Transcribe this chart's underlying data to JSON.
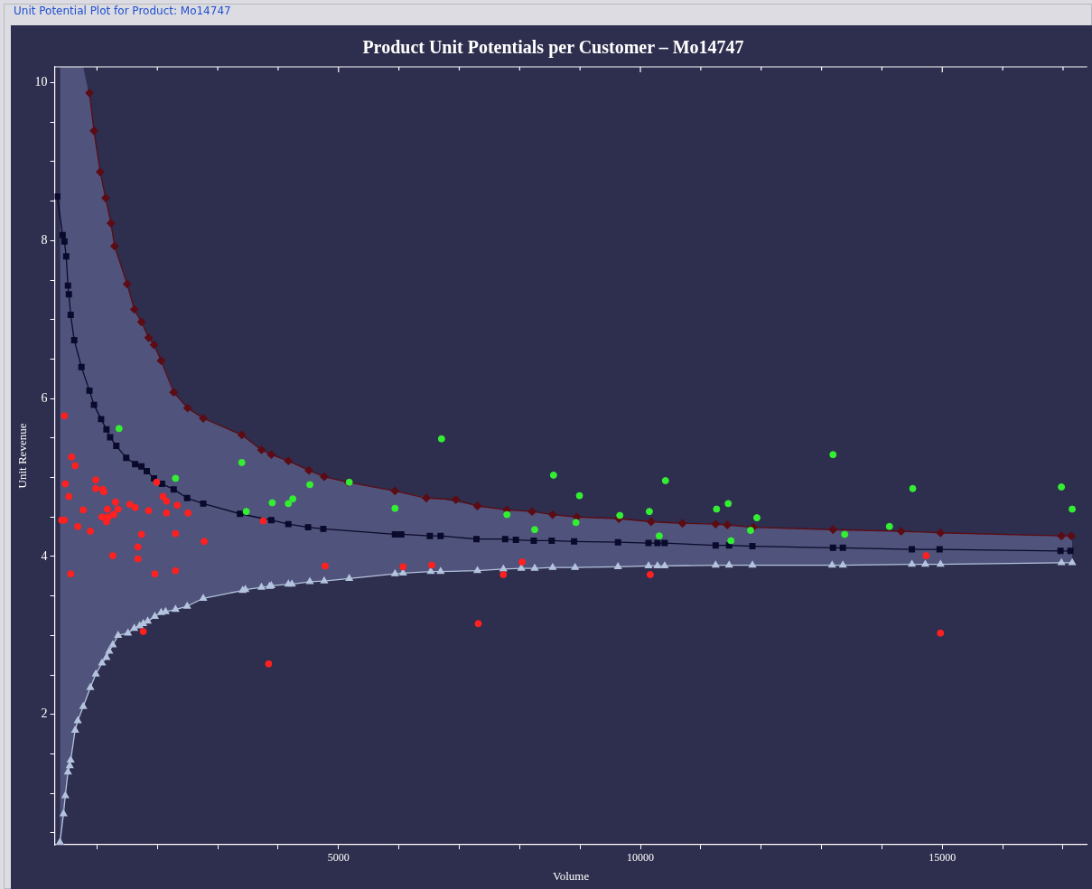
{
  "chart_data": {
    "type": "scatter",
    "title": "Product Unit Potentials per Customer – Mo14747",
    "annotations": [
      "Unit Potential Plot for Product: Mo14747"
    ],
    "xlabel": "Volume",
    "ylabel": "Unit Revenue",
    "xlim": [
      300,
      17400
    ],
    "ylim": [
      0.35,
      10.2
    ],
    "xticks": [
      {
        "value": 1000,
        "label": null
      },
      {
        "value": 2000,
        "label": null
      },
      {
        "value": 3000,
        "label": null
      },
      {
        "value": 4000,
        "label": null
      },
      5000,
      {
        "value": 6000,
        "label": null
      },
      {
        "value": 7000,
        "label": null
      },
      {
        "value": 8000,
        "label": null
      },
      {
        "value": 9000,
        "label": null
      },
      10000,
      {
        "value": 11000,
        "label": null
      },
      {
        "value": 12000,
        "label": null
      },
      {
        "value": 13000,
        "label": null
      },
      {
        "value": 14000,
        "label": null
      },
      15000,
      {
        "value": 16000,
        "label": null
      },
      {
        "value": 17000,
        "label": null
      }
    ],
    "yticks": [
      {
        "value": 0.5,
        "label": null
      },
      {
        "value": 1,
        "label": null
      },
      {
        "value": 1.5,
        "label": null
      },
      2,
      {
        "value": 2.5,
        "label": null
      },
      {
        "value": 3,
        "label": null
      },
      {
        "value": 3.5,
        "label": null
      },
      4,
      {
        "value": 4.5,
        "label": null
      },
      {
        "value": 5,
        "label": null
      },
      {
        "value": 5.5,
        "label": null
      },
      6,
      {
        "value": 6.5,
        "label": null
      },
      {
        "value": 7,
        "label": null
      },
      {
        "value": 7.5,
        "label": null
      },
      8,
      {
        "value": 8.5,
        "label": null
      },
      {
        "value": 9,
        "label": null
      },
      {
        "value": 9.5,
        "label": null
      },
      10
    ],
    "grid": false,
    "legend": false,
    "series": [
      {
        "type": "line",
        "color": "#5c0c14",
        "marker": "diamond",
        "x": [
          875,
          950,
          1053,
          1142,
          1231,
          1291,
          1499,
          1617,
          1736,
          1855,
          1944,
          2062,
          2270,
          2500,
          2760,
          3398,
          3724,
          3887,
          4169,
          4510,
          4763,
          5163,
          5935,
          6454,
          6944,
          7300,
          7789,
          8205,
          8546,
          8947,
          9644,
          10178,
          10697,
          11246,
          11439,
          11869,
          13190,
          14318,
          14970,
          16973,
          17136
        ],
        "values": [
          9.87,
          9.39,
          8.87,
          8.54,
          8.22,
          7.93,
          7.45,
          7.13,
          6.97,
          6.77,
          6.68,
          6.48,
          6.08,
          5.88,
          5.75,
          5.54,
          5.35,
          5.29,
          5.21,
          5.09,
          5.01,
          4.94,
          4.83,
          4.74,
          4.72,
          4.64,
          4.59,
          4.57,
          4.53,
          4.5,
          4.48,
          4.44,
          4.42,
          4.41,
          4.4,
          4.37,
          4.34,
          4.32,
          4.3,
          4.26,
          4.26
        ]
      },
      {
        "type": "line",
        "color": "#0a0a2c",
        "marker": "square",
        "x": [
          341,
          430,
          460,
          490,
          519,
          534,
          564,
          623,
          742,
          875,
          950,
          1068,
          1157,
          1217,
          1320,
          1484,
          1632,
          1736,
          1825,
          1944,
          2077,
          2270,
          2493,
          2760,
          3368,
          3887,
          4169,
          4496,
          4748,
          5935,
          6039,
          6513,
          6691,
          7285,
          7760,
          7938,
          8234,
          8531,
          8902,
          9629,
          10134,
          10282,
          10401,
          11246,
          11469,
          11855,
          13190,
          13353,
          14496,
          14955,
          16958,
          17122
        ],
        "values": [
          8.56,
          8.07,
          7.99,
          7.8,
          7.43,
          7.32,
          7.06,
          6.74,
          6.4,
          6.1,
          5.92,
          5.74,
          5.61,
          5.51,
          5.4,
          5.25,
          5.17,
          5.14,
          5.08,
          4.99,
          4.92,
          4.85,
          4.74,
          4.67,
          4.54,
          4.46,
          4.41,
          4.37,
          4.35,
          4.28,
          4.28,
          4.26,
          4.26,
          4.22,
          4.22,
          4.21,
          4.2,
          4.2,
          4.19,
          4.18,
          4.17,
          4.17,
          4.17,
          4.14,
          4.14,
          4.13,
          4.11,
          4.11,
          4.09,
          4.09,
          4.07,
          4.07
        ]
      },
      {
        "type": "line",
        "color": "#b4c4de",
        "marker": "triangle",
        "x": [
          386,
          445,
          475,
          519,
          549,
          564,
          638,
          682,
          772,
          890,
          980,
          1083,
          1157,
          1202,
          1261,
          1350,
          1513,
          1617,
          1706,
          1766,
          1840,
          1958,
          2062,
          2136,
          2300,
          2493,
          2760,
          3412,
          3457,
          3724,
          3858,
          3887,
          4169,
          4228,
          4525,
          4763,
          5178,
          5935,
          6068,
          6528,
          6691,
          7300,
          7730,
          8027,
          8249,
          8546,
          8917,
          9629,
          10134,
          10282,
          10401,
          11246,
          11469,
          11855,
          13175,
          13353,
          14496,
          14718,
          14970,
          16973,
          17151
        ],
        "lower": [
          0.38,
          0.74,
          0.97,
          1.27,
          1.35,
          1.42,
          1.8,
          1.92,
          2.1,
          2.34,
          2.51,
          2.65,
          2.72,
          2.8,
          2.88,
          3,
          3.03,
          3.09,
          3.12,
          3.15,
          3.18,
          3.24,
          3.29,
          3.3,
          3.33,
          3.37,
          3.47,
          3.57,
          3.58,
          3.61,
          3.62,
          3.63,
          3.65,
          3.65,
          3.68,
          3.69,
          3.72,
          3.78,
          3.79,
          3.81,
          3.81,
          3.82,
          3.84,
          3.85,
          3.85,
          3.86,
          3.86,
          3.87,
          3.88,
          3.88,
          3.88,
          3.89,
          3.89,
          3.89,
          3.89,
          3.89,
          3.9,
          3.9,
          3.9,
          3.92,
          3.92
        ],
        "upper": [
          10.2,
          10.2,
          10.2,
          10.2,
          10.2,
          10.2,
          10.2,
          10.2,
          10.2,
          9.77,
          9.2,
          8.77,
          8.49,
          8.33,
          8.07,
          7.8,
          7.41,
          7.13,
          7.01,
          6.92,
          6.79,
          6.66,
          6.48,
          6.35,
          6.05,
          5.88,
          5.75,
          5.53,
          5.5,
          5.35,
          5.3,
          5.29,
          5.21,
          5.19,
          5.09,
          5.01,
          4.94,
          4.83,
          4.81,
          4.74,
          4.73,
          4.64,
          4.6,
          4.58,
          4.57,
          4.53,
          4.5,
          4.48,
          4.44,
          4.44,
          4.43,
          4.41,
          4.4,
          4.37,
          4.34,
          4.34,
          4.31,
          4.31,
          4.3,
          4.26,
          4.26
        ],
        "values": [
          0.38,
          0.74,
          0.97,
          1.27,
          1.35,
          1.42,
          1.8,
          1.92,
          2.1,
          2.34,
          2.51,
          2.65,
          2.72,
          2.8,
          2.88,
          3,
          3.03,
          3.09,
          3.12,
          3.15,
          3.18,
          3.24,
          3.29,
          3.3,
          3.33,
          3.37,
          3.47,
          3.57,
          3.58,
          3.61,
          3.62,
          3.63,
          3.65,
          3.65,
          3.68,
          3.69,
          3.72,
          3.78,
          3.79,
          3.81,
          3.81,
          3.82,
          3.84,
          3.85,
          3.85,
          3.86,
          3.86,
          3.87,
          3.88,
          3.88,
          3.88,
          3.89,
          3.89,
          3.89,
          3.89,
          3.89,
          3.9,
          3.9,
          3.9,
          3.92,
          3.92
        ]
      },
      {
        "type": "scatter",
        "color": "#ff2020",
        "marker": "circle",
        "x": [
          460,
          579,
          638,
          475,
          980,
          534,
          980,
          1098,
          1113,
          772,
          1306,
          1172,
          1350,
          1083,
          1187,
          1276,
          1157,
          415,
          460,
          682,
          890,
          1543,
          1632,
          1988,
          1855,
          2092,
          2151,
          2329,
          2151,
          2508,
          1736,
          1677,
          2300,
          2775,
          1261,
          1677,
          564,
          1958,
          2300,
          3754,
          4778,
          1766,
          3843,
          6068,
          6543,
          7315,
          7730,
          8042,
          10163,
          14733,
          14970
        ],
        "values": [
          5.78,
          5.26,
          5.15,
          4.92,
          4.97,
          4.76,
          4.86,
          4.85,
          4.82,
          4.59,
          4.69,
          4.6,
          4.6,
          4.5,
          4.5,
          4.53,
          4.44,
          4.46,
          4.46,
          4.38,
          4.32,
          4.66,
          4.62,
          4.94,
          4.58,
          4.76,
          4.7,
          4.65,
          4.55,
          4.55,
          4.28,
          4.12,
          4.29,
          4.19,
          4.01,
          3.97,
          3.78,
          3.78,
          3.82,
          4.45,
          3.88,
          3.05,
          2.64,
          3.87,
          3.89,
          3.15,
          3.77,
          3.93,
          3.77,
          4.01,
          3.03
        ]
      },
      {
        "type": "scatter",
        "color": "#33ee33",
        "marker": "circle",
        "x": [
          1365,
          2300,
          3398,
          3472,
          3902,
          4169,
          4243,
          4525,
          5178,
          6706,
          5935,
          7789,
          8249,
          8561,
          8991,
          8932,
          9659,
          10148,
          10415,
          10312,
          11261,
          11454,
          11499,
          11929,
          11825,
          13190,
          13383,
          14125,
          14510,
          16973,
          17151
        ],
        "values": [
          5.62,
          4.99,
          5.19,
          4.57,
          4.68,
          4.67,
          4.73,
          4.91,
          4.94,
          5.49,
          4.61,
          4.53,
          4.34,
          5.03,
          4.77,
          4.43,
          4.52,
          4.57,
          4.96,
          4.26,
          4.6,
          4.67,
          4.2,
          4.49,
          4.33,
          5.29,
          4.28,
          4.38,
          4.86,
          4.88,
          4.6
        ]
      }
    ]
  }
}
